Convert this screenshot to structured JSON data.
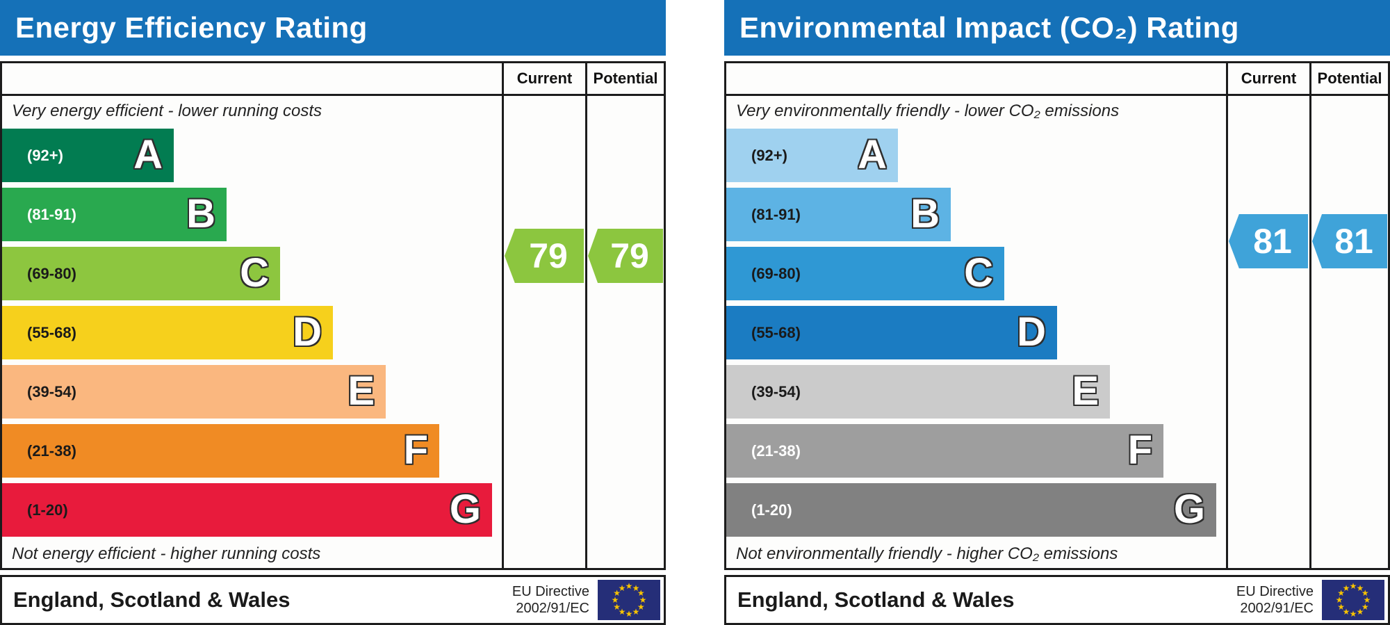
{
  "chart_data": [
    {
      "type": "rating-bands",
      "title": "Energy Efficiency Rating",
      "header_color": "#1571b8",
      "columns": {
        "current": "Current",
        "potential": "Potential"
      },
      "caption_top": "Very energy efficient - lower running costs",
      "caption_bottom": "Not energy efficient - higher running costs",
      "bands": [
        {
          "letter": "A",
          "range": "(92+)",
          "score_min": 92,
          "score_max": 100,
          "color": "#027c51",
          "label_color": "#ffffff",
          "width_pct": 34.6
        },
        {
          "letter": "B",
          "range": "(81-91)",
          "score_min": 81,
          "score_max": 91,
          "color": "#29a94f",
          "label_color": "#ffffff",
          "width_pct": 45.2
        },
        {
          "letter": "C",
          "range": "(69-80)",
          "score_min": 69,
          "score_max": 80,
          "color": "#8dc63f",
          "label_color": "#1a1a1a",
          "width_pct": 56.0
        },
        {
          "letter": "D",
          "range": "(55-68)",
          "score_min": 55,
          "score_max": 68,
          "color": "#f6d01c",
          "label_color": "#1a1a1a",
          "width_pct": 66.7
        },
        {
          "letter": "E",
          "range": "(39-54)",
          "score_min": 39,
          "score_max": 54,
          "color": "#fab77f",
          "label_color": "#1a1a1a",
          "width_pct": 77.3
        },
        {
          "letter": "F",
          "range": "(21-38)",
          "score_min": 21,
          "score_max": 38,
          "color": "#f08b24",
          "label_color": "#1a1a1a",
          "width_pct": 88.1
        },
        {
          "letter": "G",
          "range": "(1-20)",
          "score_min": 1,
          "score_max": 20,
          "color": "#e81b3c",
          "label_color": "#1a1a1a",
          "width_pct": 98.7
        }
      ],
      "current": {
        "value": "79",
        "band": "C",
        "arrow_color": "#8cc63f"
      },
      "potential": {
        "value": "79",
        "band": "C",
        "arrow_color": "#8cc63f"
      },
      "footer": {
        "region": "England, Scotland & Wales",
        "directive": "EU Directive\n2002/91/EC"
      }
    },
    {
      "type": "rating-bands",
      "title": "Environmental Impact (CO₂) Rating",
      "header_color": "#1571b8",
      "columns": {
        "current": "Current",
        "potential": "Potential"
      },
      "caption_top": "Very environmentally friendly - lower CO₂ emissions",
      "caption_bottom": "Not environmentally friendly - higher CO₂ emissions",
      "bands": [
        {
          "letter": "A",
          "range": "(92+)",
          "score_min": 92,
          "score_max": 100,
          "color": "#9fd1ef",
          "label_color": "#1a1a1a",
          "width_pct": 34.6
        },
        {
          "letter": "B",
          "range": "(81-91)",
          "score_min": 81,
          "score_max": 91,
          "color": "#5db3e4",
          "label_color": "#1a1a1a",
          "width_pct": 45.2
        },
        {
          "letter": "C",
          "range": "(69-80)",
          "score_min": 69,
          "score_max": 80,
          "color": "#2f98d4",
          "label_color": "#1a1a1a",
          "width_pct": 56.0
        },
        {
          "letter": "D",
          "range": "(55-68)",
          "score_min": 55,
          "score_max": 68,
          "color": "#1b7cc2",
          "label_color": "#1a1a1a",
          "width_pct": 66.7
        },
        {
          "letter": "E",
          "range": "(39-54)",
          "score_min": 39,
          "score_max": 54,
          "color": "#cbcbcb",
          "label_color": "#1a1a1a",
          "width_pct": 77.3
        },
        {
          "letter": "F",
          "range": "(21-38)",
          "score_min": 21,
          "score_max": 38,
          "color": "#9e9e9e",
          "label_color": "#ffffff",
          "width_pct": 88.1
        },
        {
          "letter": "G",
          "range": "(1-20)",
          "score_min": 1,
          "score_max": 20,
          "color": "#818181",
          "label_color": "#ffffff",
          "width_pct": 98.7
        }
      ],
      "current": {
        "value": "81",
        "band": "B",
        "arrow_color": "#3fa3d9"
      },
      "potential": {
        "value": "81",
        "band": "B",
        "arrow_color": "#3fa3d9"
      },
      "footer": {
        "region": "England, Scotland & Wales",
        "directive": "EU Directive\n2002/91/EC"
      }
    }
  ],
  "eu_flag": {
    "background": "#252e78",
    "star_color": "#f8c300",
    "star_count": 12
  }
}
